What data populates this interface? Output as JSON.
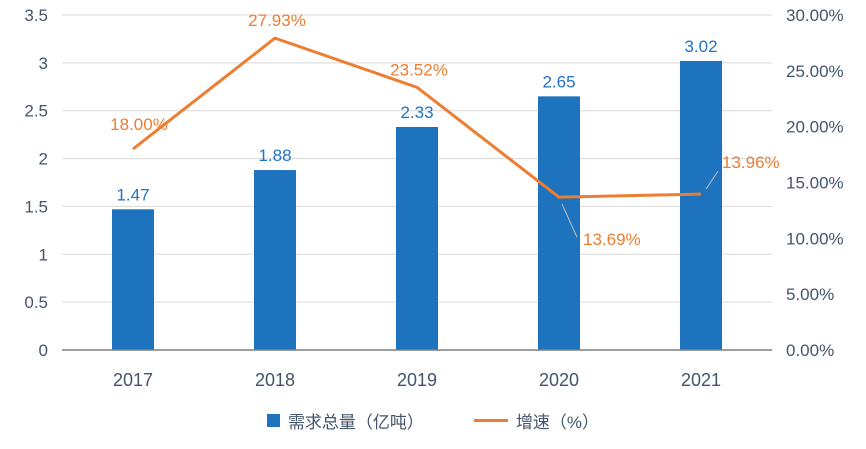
{
  "chart_data": {
    "type": "combo-bar-line",
    "categories": [
      "2017",
      "2018",
      "2019",
      "2020",
      "2021"
    ],
    "series": [
      {
        "name": "需求总量（亿吨）",
        "type": "bar",
        "axis": "left",
        "values": [
          1.47,
          1.88,
          2.33,
          2.65,
          3.02
        ],
        "labels": [
          "1.47",
          "1.88",
          "2.33",
          "2.65",
          "3.02"
        ],
        "color": "#1E73BE",
        "label_color": "#2272C8"
      },
      {
        "name": "增速（%）",
        "type": "line",
        "axis": "right",
        "values": [
          18.0,
          27.93,
          23.52,
          13.69,
          13.96
        ],
        "labels": [
          "18.00%",
          "27.93%",
          "23.52%",
          "13.69%",
          "13.96%"
        ],
        "color": "#ED7D31",
        "label_color": "#ED7D31"
      }
    ],
    "left_axis": {
      "min": 0,
      "max": 3.5,
      "step": 0.5,
      "ticks": [
        "0",
        "0.5",
        "1",
        "1.5",
        "2",
        "2.5",
        "3",
        "3.5"
      ]
    },
    "right_axis": {
      "min": 0,
      "max": 30,
      "step": 5,
      "ticks": [
        "0.00%",
        "5.00%",
        "10.00%",
        "15.00%",
        "20.00%",
        "25.00%",
        "30.00%"
      ]
    },
    "grid": true,
    "legend_position": "bottom",
    "colors": {
      "axis_text": "#44546A",
      "gridline": "#D9D9D9",
      "axis_line": "#7F7F7F",
      "leader_line": "#BFBFBF",
      "background": "#FFFFFF"
    }
  }
}
